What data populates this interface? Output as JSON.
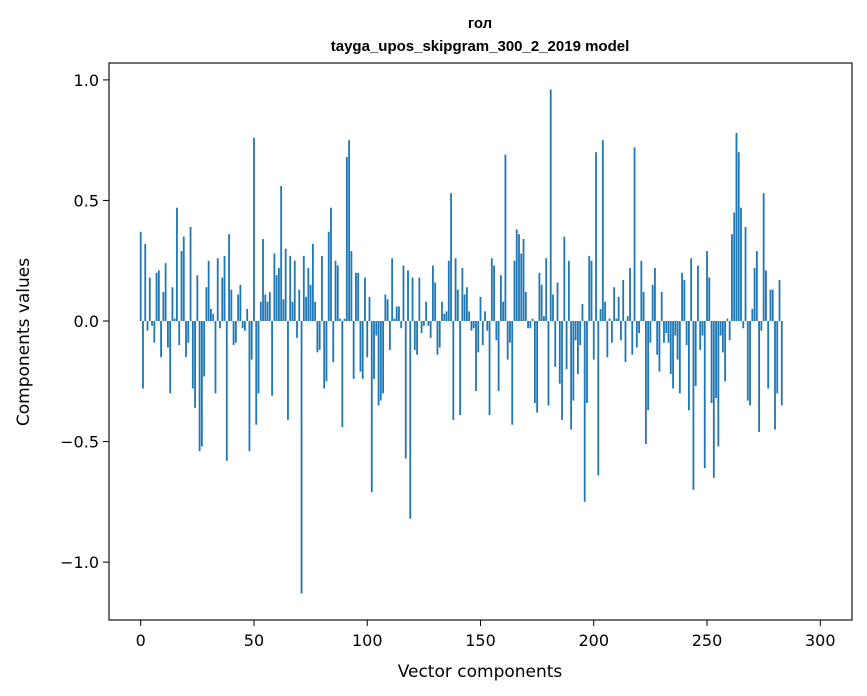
{
  "chart_data": {
    "type": "bar",
    "title": "гол",
    "subtitle": "tayga_upos_skipgram_300_2_2019 model",
    "xlabel": "Vector components",
    "ylabel": "Components values",
    "xlim": [
      -14,
      314
    ],
    "ylim": [
      -1.24,
      1.07
    ],
    "xticks": [
      0,
      50,
      100,
      150,
      200,
      250,
      300
    ],
    "xtick_labels": [
      "0",
      "50",
      "100",
      "150",
      "200",
      "250",
      "300"
    ],
    "yticks": [
      -1.0,
      -0.5,
      0.0,
      0.5,
      1.0
    ],
    "ytick_labels": [
      "−1.0",
      "−0.5",
      "0.0",
      "0.5",
      "1.0"
    ],
    "bar_color": "#1f77b4",
    "values": [
      0.37,
      -0.28,
      0.32,
      -0.04,
      0.18,
      -0.02,
      -0.09,
      0.2,
      0.21,
      -0.15,
      0.12,
      0.24,
      -0.11,
      -0.3,
      0.14,
      0.01,
      0.47,
      -0.1,
      0.29,
      0.35,
      -0.15,
      -0.09,
      0.39,
      -0.28,
      -0.36,
      0.19,
      -0.54,
      -0.52,
      -0.23,
      0.14,
      0.25,
      0.05,
      0.03,
      -0.3,
      0.26,
      -0.03,
      0.18,
      0.27,
      -0.58,
      0.36,
      0.13,
      -0.1,
      -0.09,
      0.11,
      0.15,
      -0.03,
      -0.04,
      0.05,
      -0.54,
      -0.16,
      0.76,
      -0.43,
      -0.3,
      0.08,
      0.34,
      0.11,
      0.08,
      0.12,
      -0.31,
      0.28,
      0.19,
      0.22,
      0.56,
      0.09,
      0.3,
      -0.41,
      0.27,
      0.08,
      0.25,
      -0.07,
      0.13,
      -1.13,
      0.27,
      0.1,
      0.22,
      0.15,
      0.32,
      0.08,
      -0.13,
      -0.12,
      0.27,
      -0.28,
      -0.25,
      0.37,
      0.47,
      -0.17,
      0.25,
      0.23,
      0.01,
      -0.44,
      0.01,
      0.68,
      0.75,
      0.29,
      -0.24,
      0.2,
      0.2,
      -0.21,
      -0.24,
      0.18,
      -0.15,
      0.1,
      -0.71,
      -0.24,
      -0.06,
      -0.35,
      -0.33,
      -0.3,
      0.11,
      0.09,
      -0.12,
      0.26,
      0.01,
      0.06,
      0.06,
      -0.03,
      0.23,
      -0.57,
      0.21,
      -0.82,
      0.18,
      -0.12,
      -0.14,
      0.18,
      -0.05,
      -0.02,
      0.08,
      -0.02,
      -0.07,
      0.23,
      0.16,
      -0.14,
      -0.11,
      0.08,
      0.03,
      0.04,
      0.25,
      0.53,
      -0.41,
      0.26,
      0.13,
      -0.39,
      0.22,
      0.11,
      0.14,
      0.04,
      -0.04,
      -0.03,
      -0.29,
      -0.13,
      0.1,
      -0.1,
      0.04,
      -0.04,
      -0.39,
      0.26,
      0.23,
      -0.08,
      -0.29,
      0.19,
      0.08,
      0.69,
      -0.16,
      -0.09,
      -0.43,
      0.25,
      0.38,
      0.36,
      0.28,
      0.34,
      0.12,
      -0.03,
      -0.03,
      0.01,
      -0.34,
      -0.38,
      0.2,
      0.15,
      0.02,
      0.26,
      -0.35,
      0.96,
      0.11,
      -0.19,
      0.16,
      -0.26,
      -0.41,
      0.35,
      -0.2,
      0.25,
      -0.45,
      -0.33,
      -0.08,
      -0.22,
      -0.1,
      0.07,
      -0.75,
      -0.34,
      0.27,
      0.25,
      -0.16,
      0.7,
      -0.64,
      0.05,
      0.75,
      0.08,
      -0.15,
      0.01,
      -0.09,
      0.14,
      0.01,
      0.1,
      -0.08,
      0.17,
      -0.17,
      0.02,
      0.22,
      -0.14,
      0.72,
      -0.11,
      -0.05,
      0.25,
      0.12,
      -0.51,
      -0.37,
      -0.09,
      0.15,
      0.22,
      -0.14,
      -0.21,
      0.12,
      -0.09,
      -0.05,
      -0.09,
      -0.22,
      -0.28,
      -0.06,
      -0.16,
      -0.3,
      0.2,
      0.17,
      -0.1,
      -0.37,
      0.26,
      -0.7,
      -0.27,
      0.23,
      -0.12,
      -0.06,
      -0.61,
      0.29,
      0.18,
      -0.34,
      -0.65,
      -0.32,
      -0.52,
      -0.06,
      -0.13,
      -0.25,
      0.01,
      -0.08,
      0.36,
      0.45,
      0.78,
      0.7,
      0.47,
      -0.03,
      0.39,
      -0.33,
      -0.35,
      0.05,
      0.22,
      0.29,
      -0.46,
      -0.04,
      0.53,
      0.21,
      -0.28,
      0.13,
      0.13,
      -0.45,
      -0.3,
      0.17,
      -0.35
    ]
  }
}
